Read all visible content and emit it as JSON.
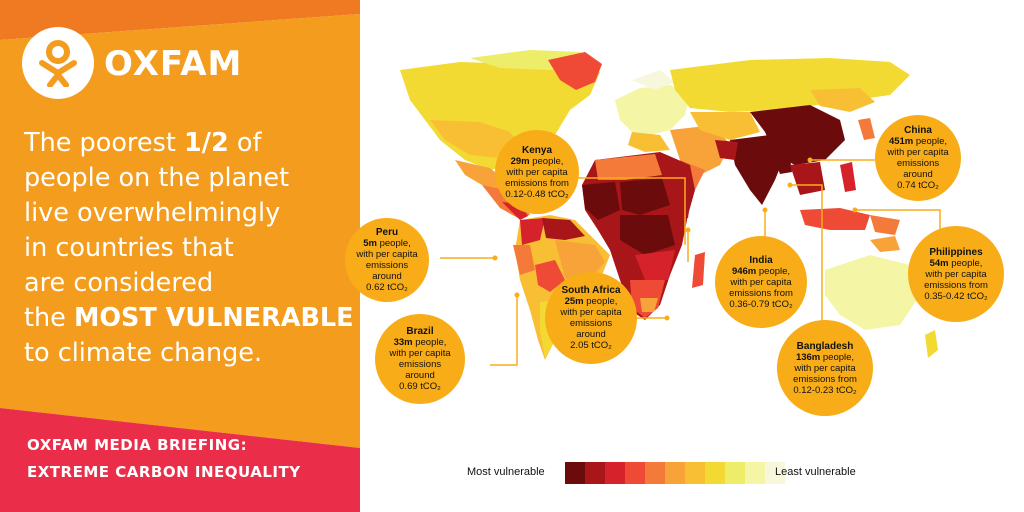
{
  "brand": {
    "name": "OXFAM",
    "logo_icon": "oxfam-person-icon"
  },
  "headline": {
    "lines": [
      {
        "pre": "The poorest ",
        "bold": "1/2",
        "post": " of"
      },
      {
        "pre": "people on the planet",
        "bold": "",
        "post": ""
      },
      {
        "pre": "live overwhelmingly",
        "bold": "",
        "post": ""
      },
      {
        "pre": "in countries that",
        "bold": "",
        "post": ""
      },
      {
        "pre": "are considered",
        "bold": "",
        "post": ""
      },
      {
        "pre": "the ",
        "bold": "MOST VULNERABLE",
        "post": ""
      },
      {
        "pre": "to climate change.",
        "bold": "",
        "post": ""
      }
    ]
  },
  "briefing": {
    "line1": "OXFAM MEDIA BRIEFING:",
    "line2": "EXTREME CARBON INEQUALITY"
  },
  "colors": {
    "left_orange": "#f39c1e",
    "top_band": "#f07a22",
    "bottom_red": "#ea2e4a",
    "callout": "#f8ad18",
    "ocean": "#ffffff"
  },
  "callouts": [
    {
      "id": "kenya",
      "country": "Kenya",
      "lines": [
        {
          "b": "29m",
          "t": " people,"
        },
        {
          "b": "",
          "t": "with per capita"
        },
        {
          "b": "",
          "t": "emissions from"
        },
        {
          "b": "",
          "t": "0.12-0.48 tCO₂"
        }
      ]
    },
    {
      "id": "china",
      "country": "China",
      "lines": [
        {
          "b": "451m",
          "t": " people,"
        },
        {
          "b": "",
          "t": "with per capita"
        },
        {
          "b": "",
          "t": "emissions"
        },
        {
          "b": "",
          "t": "around"
        },
        {
          "b": "",
          "t": "0.74 tCO₂"
        }
      ]
    },
    {
      "id": "peru",
      "country": "Peru",
      "lines": [
        {
          "b": "5m",
          "t": " people,"
        },
        {
          "b": "",
          "t": "with per capita"
        },
        {
          "b": "",
          "t": "emissions"
        },
        {
          "b": "",
          "t": "around"
        },
        {
          "b": "",
          "t": "0.62 tCO₂"
        }
      ]
    },
    {
      "id": "india",
      "country": "India",
      "lines": [
        {
          "b": "946m",
          "t": " people,"
        },
        {
          "b": "",
          "t": "with per capita"
        },
        {
          "b": "",
          "t": "emissions from"
        },
        {
          "b": "",
          "t": "0.36-0.79 tCO₂"
        }
      ]
    },
    {
      "id": "philippines",
      "country": "Philippines",
      "lines": [
        {
          "b": "54m",
          "t": " people,"
        },
        {
          "b": "",
          "t": "with per capita"
        },
        {
          "b": "",
          "t": "emissions from"
        },
        {
          "b": "",
          "t": "0.35-0.42 tCO₂"
        }
      ]
    },
    {
      "id": "south-africa",
      "country": "South Africa",
      "lines": [
        {
          "b": "25m",
          "t": " people,"
        },
        {
          "b": "",
          "t": "with per capita"
        },
        {
          "b": "",
          "t": "emissions"
        },
        {
          "b": "",
          "t": "around"
        },
        {
          "b": "",
          "t": "2.05 tCO₂"
        }
      ]
    },
    {
      "id": "brazil",
      "country": "Brazil",
      "lines": [
        {
          "b": "33m",
          "t": " people,"
        },
        {
          "b": "",
          "t": "with per capita"
        },
        {
          "b": "",
          "t": "emissions"
        },
        {
          "b": "",
          "t": "around"
        },
        {
          "b": "",
          "t": "0.69 tCO₂"
        }
      ]
    },
    {
      "id": "bangladesh",
      "country": "Bangladesh",
      "lines": [
        {
          "b": "136m",
          "t": " people,"
        },
        {
          "b": "",
          "t": "with per capita"
        },
        {
          "b": "",
          "t": "emissions from"
        },
        {
          "b": "",
          "t": "0.12-0.23 tCO₂"
        }
      ]
    }
  ],
  "legend": {
    "most": "Most vulnerable",
    "least": "Least vulnerable",
    "scale": [
      "#6b0b0b",
      "#a8161a",
      "#d6222a",
      "#ee4a35",
      "#f47a3a",
      "#f8a33a",
      "#f9bf34",
      "#f3da33",
      "#eded6a",
      "#f5f5a6",
      "#f7f7dc"
    ]
  }
}
